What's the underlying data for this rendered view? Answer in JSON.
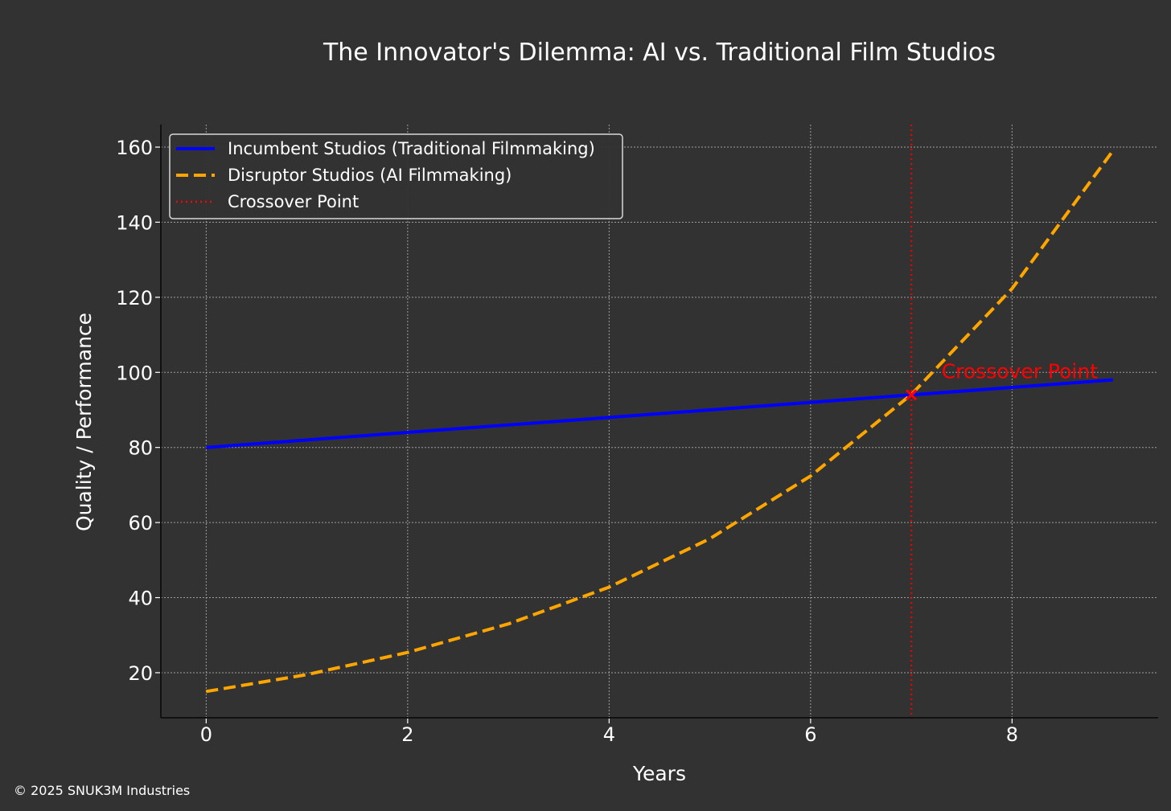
{
  "chart_data": {
    "type": "line",
    "title": "The Innovator's Dilemma: AI vs. Traditional Film Studios",
    "xlabel": "Years",
    "ylabel": "Quality / Performance",
    "xlim": [
      -0.45,
      9.45
    ],
    "ylim": [
      8,
      166
    ],
    "x_ticks": [
      0,
      2,
      4,
      6,
      8
    ],
    "y_ticks": [
      20,
      40,
      60,
      80,
      100,
      120,
      140,
      160
    ],
    "grid": true,
    "legend_position": "upper-left",
    "series": [
      {
        "name": "Incumbent Studios (Traditional Filmmaking)",
        "color": "#0000ff",
        "style": "solid",
        "x": [
          0,
          1,
          2,
          3,
          4,
          5,
          6,
          7,
          8,
          9
        ],
        "y": [
          80,
          82,
          84,
          86,
          88,
          90,
          92,
          94,
          96,
          98
        ]
      },
      {
        "name": "Disruptor Studios (AI Filmmaking)",
        "color": "#ffa500",
        "style": "dashed",
        "x": [
          0,
          1,
          2,
          3,
          4,
          5,
          6,
          7,
          8,
          9
        ],
        "y": [
          15,
          19.5,
          25.4,
          33,
          42.8,
          55.7,
          72.4,
          94.1,
          122.3,
          159
        ]
      }
    ],
    "crossover": {
      "legend_label": "Crossover Point",
      "annotation": "Crossover Point",
      "x": 7,
      "y": 94,
      "color": "#ff0000",
      "marker": "x"
    }
  },
  "footer": {
    "copyright": "© 2025 SNUK3M Industries"
  }
}
